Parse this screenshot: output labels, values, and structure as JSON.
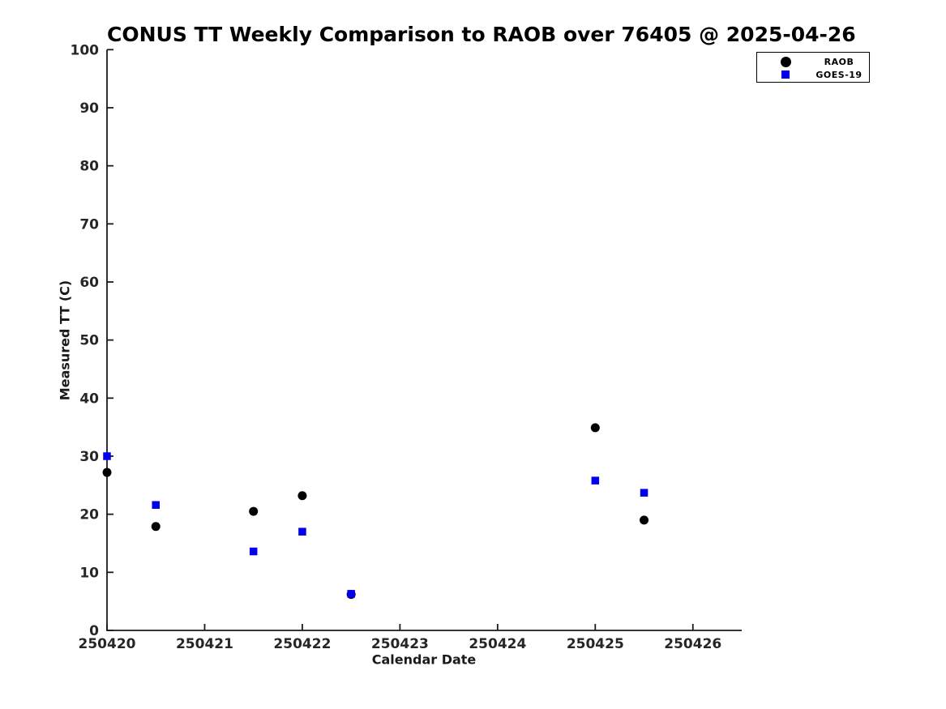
{
  "figure": {
    "background": "#ffffff",
    "axis_color": "#1a1a1a",
    "tick_label_color": "#262626"
  },
  "chart_data": {
    "type": "scatter",
    "title": "CONUS TT Weekly Comparison to RAOB over 76405 @ 2025-04-26",
    "xlabel": "Calendar Date",
    "ylabel": "Measured TT (C)",
    "x_tick_labels": [
      "250420",
      "250421",
      "250422",
      "250423",
      "250424",
      "250425",
      "250426"
    ],
    "x_tick_values": [
      250420,
      250421,
      250422,
      250423,
      250424,
      250425,
      250426
    ],
    "xlim": [
      250420,
      250426.5
    ],
    "ylim": [
      0,
      100
    ],
    "y_tick_step": 10,
    "grid": false,
    "legend_position": "top-right-outside",
    "legend": [
      {
        "name": "RAOB",
        "marker": "circle",
        "color": "#000000"
      },
      {
        "name": "GOES-19",
        "marker": "square",
        "color": "#0000ee"
      }
    ],
    "series": [
      {
        "name": "RAOB",
        "marker": "circle",
        "color": "#000000",
        "points": [
          [
            250420.0,
            27.2
          ],
          [
            250420.5,
            17.9
          ],
          [
            250421.5,
            20.5
          ],
          [
            250422.0,
            23.2
          ],
          [
            250422.5,
            6.2
          ],
          [
            250425.0,
            34.9
          ],
          [
            250425.5,
            19.0
          ]
        ]
      },
      {
        "name": "GOES-19",
        "marker": "square",
        "color": "#0000ee",
        "points": [
          [
            250420.0,
            30.0
          ],
          [
            250420.5,
            21.6
          ],
          [
            250421.5,
            13.6
          ],
          [
            250422.0,
            17.0
          ],
          [
            250422.5,
            6.3
          ],
          [
            250425.0,
            25.8
          ],
          [
            250425.5,
            23.7
          ]
        ]
      }
    ]
  }
}
